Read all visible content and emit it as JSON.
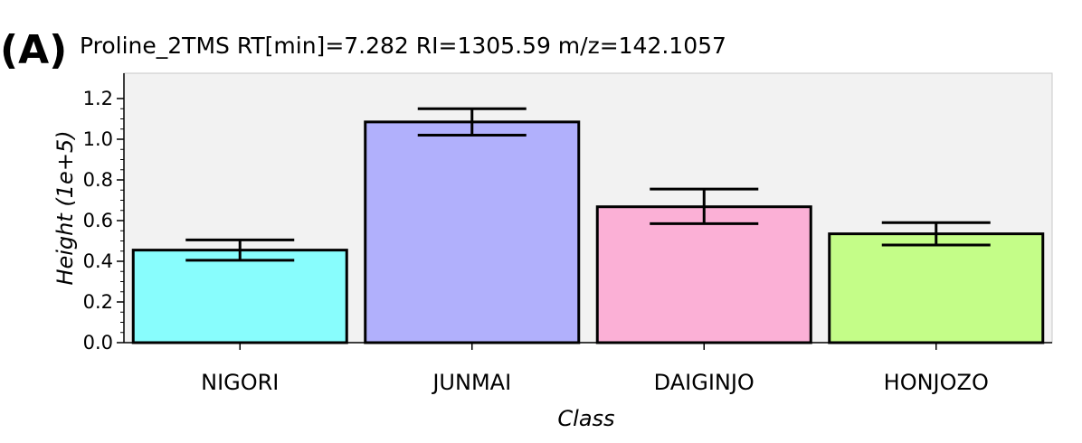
{
  "panel_label": "(A)",
  "chart_data": {
    "type": "bar",
    "title": "Proline_2TMS RT[min]=7.282 RI=1305.59 m/z=142.1057",
    "xlabel": "Class",
    "ylabel": "Height (1e+5)",
    "categories": [
      "NIGORI",
      "JUNMAI",
      "DAIGINJO",
      "HONJOZO"
    ],
    "values": [
      0.455,
      1.085,
      0.668,
      0.535
    ],
    "error_upper": [
      0.505,
      1.15,
      0.755,
      0.59
    ],
    "error_lower": [
      0.405,
      1.02,
      0.585,
      0.48
    ],
    "bar_colors": [
      "#88fdfd",
      "#b1b0fc",
      "#fbb0d6",
      "#c4fd88"
    ],
    "ylim": [
      0,
      1.2
    ],
    "yticks": [
      "0.0",
      "0.2",
      "0.4",
      "0.6",
      "0.8",
      "1.0",
      "1.2"
    ],
    "grid": false,
    "plot_background": "#f2f2f2"
  }
}
